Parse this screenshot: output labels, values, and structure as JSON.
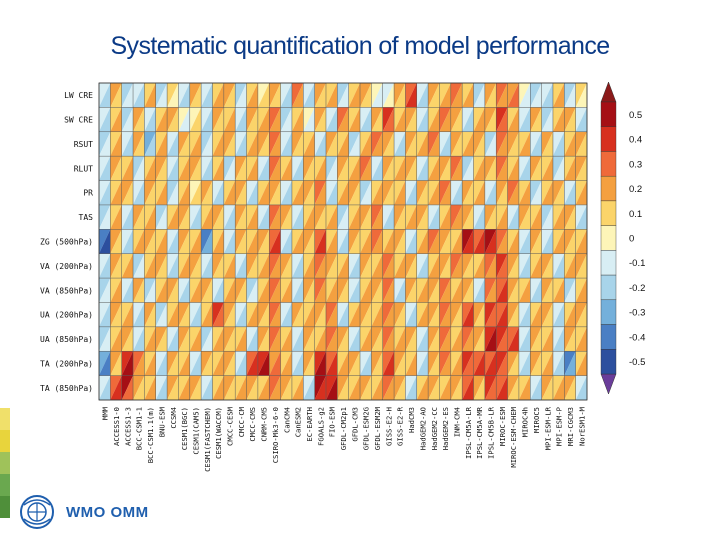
{
  "slide": {
    "title": "Systematic quantification of model performance",
    "logo_text": "WMO OMM"
  },
  "colors": {
    "title": "#0b3a86",
    "stripe": [
      "#f0e06a",
      "#e8d43c",
      "#9fc25a",
      "#6aa84f",
      "#4f8f3a"
    ],
    "logo": "#1f5fae"
  },
  "chart_data": {
    "type": "heatmap",
    "title": "",
    "row_labels": [
      "LW CRE",
      "SW CRE",
      "RSUT",
      "RLUT",
      "PR",
      "TAS",
      "ZG (500hPa)",
      "VA (200hPa)",
      "VA (850hPa)",
      "UA (200hPa)",
      "UA (850hPa)",
      "TA (200hPa)",
      "TA (850hPa)"
    ],
    "column_labels": [
      "MMM",
      "ACCESS1-0",
      "ACCESS1-3",
      "BCC-CSM1-1",
      "BCC-CSM1.1(m)",
      "BNU-ESM",
      "CCSM4",
      "CESM1(BGC)",
      "CESM1(CAM5)",
      "CESM1(FASTCHEM)",
      "CESM1(WACCM)",
      "CMCC-CESM",
      "CMCC-CM",
      "CMCC-CMS",
      "CNRM-CM5",
      "CSIRO-Mk3-6-0",
      "CanCM4",
      "CanESM2",
      "EC-EARTH",
      "FGOALS-g2",
      "FIO-ESM",
      "GFDL-CM2p1",
      "GFDL-CM3",
      "GFDL-ESM2G",
      "GFDL-ESM2M",
      "GISS-E2-H",
      "GISS-E2-R",
      "HadCM3",
      "HadGEM2-AO",
      "HadGEM2-CC",
      "HadGEM2-ES",
      "INM-CM4",
      "IPSL-CM5A-LR",
      "IPSL-CM5A-MR",
      "IPSL-CM5B-LR",
      "MIROC-ESM",
      "MIROC-ESM-CHEM",
      "MIROC4h",
      "MIROC5",
      "MPI-ESM-LR",
      "MPI-ESM-P",
      "MRI-CGCM3",
      "NorESM1-M"
    ],
    "colorbar": {
      "ticks": [
        0.5,
        0.4,
        0.3,
        0.2,
        0.1,
        0,
        -0.1,
        -0.2,
        -0.3,
        -0.4,
        -0.5
      ],
      "colors": [
        "#a50f15",
        "#d7301f",
        "#ef6a3a",
        "#f4a040",
        "#fbd46a",
        "#fdf5b8",
        "#d8eef4",
        "#a8d4ea",
        "#74b0db",
        "#4a7fc4",
        "#2c4f9e"
      ],
      "extend_top_color": "#8b1a1a",
      "extend_bottom_color": "#6a3d9a"
    },
    "values_upper": [
      [
        -0.1,
        0.2,
        -0.2,
        -0.1,
        0.1,
        -0.2,
        0.1,
        -0.1,
        0.2,
        -0.1,
        0.1,
        0.2,
        -0.2,
        0.1,
        0.0,
        0.2,
        -0.1,
        0.3,
        -0.1,
        0.2,
        0.1,
        -0.2,
        0.1,
        0.2,
        0.0,
        -0.1,
        0.2,
        0.3,
        -0.1,
        0.2,
        0.1,
        0.3,
        0.1,
        -0.2,
        0.2,
        0.3,
        0.2,
        0.0,
        -0.2,
        -0.1,
        0.1,
        -0.2,
        0.1
      ],
      [
        -0.1,
        0.1,
        -0.2,
        0.2,
        -0.1,
        0.1,
        0.2,
        0.0,
        0.0,
        -0.1,
        0.2,
        0.1,
        -0.1,
        0.2,
        0.1,
        0.3,
        -0.2,
        0.1,
        0.0,
        0.2,
        -0.1,
        0.3,
        0.1,
        -0.1,
        0.2,
        0.4,
        0.1,
        0.2,
        -0.1,
        0.1,
        0.3,
        0.2,
        -0.1,
        0.1,
        0.2,
        0.4,
        0.1,
        -0.1,
        0.2,
        -0.2,
        0.1,
        0.2,
        -0.1
      ],
      [
        -0.2,
        0.1,
        -0.1,
        0.2,
        -0.3,
        0.1,
        -0.1,
        0.2,
        0.1,
        -0.2,
        0.1,
        0.2,
        -0.1,
        0.1,
        0.2,
        0.3,
        -0.1,
        0.2,
        0.1,
        -0.1,
        0.2,
        0.1,
        -0.2,
        0.1,
        0.3,
        0.2,
        -0.1,
        0.2,
        0.1,
        0.3,
        -0.1,
        0.2,
        0.1,
        0.2,
        -0.2,
        0.3,
        0.2,
        0.1,
        -0.1,
        0.2,
        -0.1,
        0.1,
        0.2
      ],
      [
        -0.1,
        0.2,
        0.1,
        -0.2,
        0.1,
        0.2,
        -0.1,
        0.1,
        0.2,
        -0.1,
        0.1,
        -0.2,
        0.2,
        0.1,
        -0.1,
        0.3,
        0.1,
        -0.1,
        0.2,
        0.1,
        -0.2,
        0.2,
        0.1,
        0.3,
        -0.1,
        0.2,
        0.1,
        0.2,
        -0.1,
        0.1,
        0.2,
        0.3,
        -0.2,
        0.1,
        0.2,
        0.3,
        0.1,
        -0.1,
        0.2,
        0.1,
        -0.2,
        0.1,
        0.2
      ],
      [
        -0.1,
        0.1,
        0.2,
        -0.1,
        0.2,
        0.1,
        -0.2,
        0.1,
        0.0,
        0.2,
        -0.1,
        0.1,
        0.2,
        -0.1,
        0.1,
        0.2,
        -0.1,
        0.1,
        0.2,
        0.3,
        -0.1,
        0.1,
        0.2,
        -0.2,
        0.1,
        0.2,
        0.1,
        -0.1,
        0.2,
        0.1,
        0.3,
        -0.1,
        0.2,
        0.1,
        -0.1,
        0.2,
        0.3,
        0.1,
        -0.2,
        0.1,
        0.2,
        -0.1,
        0.1
      ],
      [
        -0.2,
        0.1,
        -0.1,
        0.2,
        0.1,
        -0.2,
        0.1,
        0.2,
        -0.1,
        0.1,
        0.2,
        -0.1,
        0.2,
        0.1,
        -0.1,
        0.3,
        0.2,
        -0.1,
        0.1,
        0.2,
        0.1,
        -0.2,
        0.1,
        0.2,
        0.3,
        -0.1,
        0.2,
        0.1,
        0.2,
        -0.1,
        0.1,
        0.3,
        0.2,
        -0.1,
        0.2,
        0.1,
        -0.1,
        0.2,
        0.1,
        -0.2,
        0.1,
        0.2,
        -0.1
      ],
      [
        -0.4,
        0.2,
        -0.1,
        0.1,
        0.2,
        0.1,
        -0.1,
        0.2,
        0.1,
        -0.4,
        0.1,
        -0.1,
        0.2,
        0.1,
        0.2,
        0.3,
        -0.1,
        0.1,
        0.2,
        0.3,
        0.1,
        -0.1,
        0.2,
        0.1,
        0.3,
        0.1,
        0.2,
        -0.1,
        0.1,
        0.3,
        0.2,
        0.1,
        0.5,
        0.3,
        0.5,
        0.3,
        0.1,
        -0.1,
        0.2,
        -0.1,
        0.1,
        0.2,
        0.1
      ],
      [
        -0.1,
        0.2,
        0.1,
        -0.2,
        0.1,
        0.2,
        -0.1,
        0.1,
        0.2,
        -0.1,
        0.2,
        0.1,
        -0.1,
        0.2,
        0.1,
        0.3,
        0.2,
        -0.1,
        0.1,
        0.3,
        0.2,
        0.1,
        -0.1,
        0.2,
        0.1,
        0.3,
        0.1,
        0.2,
        -0.1,
        0.1,
        0.2,
        0.3,
        0.2,
        0.1,
        0.3,
        0.4,
        0.2,
        -0.1,
        0.1,
        0.2,
        -0.1,
        0.1,
        0.2
      ],
      [
        -0.2,
        0.1,
        -0.1,
        0.2,
        -0.2,
        0.1,
        0.2,
        -0.1,
        0.1,
        0.2,
        -0.1,
        0.1,
        0.2,
        -0.2,
        0.1,
        0.3,
        0.1,
        -0.1,
        0.2,
        0.3,
        0.1,
        0.2,
        -0.1,
        0.1,
        0.2,
        0.3,
        -0.1,
        0.2,
        0.1,
        0.2,
        0.3,
        0.1,
        0.2,
        -0.1,
        0.3,
        0.3,
        0.2,
        0.1,
        -0.1,
        0.2,
        0.1,
        -0.2,
        0.1
      ],
      [
        -0.1,
        0.2,
        0.1,
        -0.1,
        0.2,
        -0.2,
        0.1,
        0.2,
        -0.1,
        0.1,
        0.4,
        0.2,
        -0.1,
        0.1,
        0.2,
        0.3,
        -0.1,
        0.2,
        0.1,
        0.2,
        0.3,
        -0.1,
        0.1,
        0.2,
        0.1,
        0.3,
        0.2,
        -0.1,
        0.1,
        0.2,
        0.3,
        0.2,
        0.3,
        0.2,
        0.4,
        0.3,
        0.2,
        -0.1,
        0.1,
        0.2,
        -0.1,
        0.1,
        0.2
      ],
      [
        -0.2,
        0.1,
        0.2,
        -0.1,
        0.1,
        0.2,
        -0.1,
        0.2,
        0.1,
        -0.2,
        0.1,
        0.2,
        0.1,
        -0.1,
        0.2,
        0.3,
        0.1,
        -0.1,
        0.2,
        0.1,
        0.3,
        0.2,
        -0.1,
        0.1,
        0.2,
        0.3,
        0.1,
        0.2,
        -0.1,
        0.2,
        0.3,
        0.1,
        0.3,
        0.2,
        0.4,
        0.4,
        0.3,
        -0.1,
        0.2,
        0.1,
        -0.1,
        0.2,
        0.1
      ],
      [
        -0.3,
        0.2,
        0.4,
        0.3,
        0.1,
        -0.1,
        0.2,
        0.1,
        -0.1,
        0.2,
        0.1,
        0.2,
        -0.1,
        0.3,
        0.4,
        0.2,
        0.1,
        -0.1,
        0.2,
        0.4,
        0.3,
        0.1,
        0.2,
        -0.1,
        0.2,
        0.3,
        0.2,
        0.1,
        -0.1,
        0.2,
        0.3,
        0.1,
        0.4,
        0.3,
        0.3,
        0.4,
        0.2,
        -0.1,
        0.2,
        0.1,
        -0.1,
        -0.4,
        0.1
      ],
      [
        -0.1,
        0.3,
        0.5,
        0.2,
        0.1,
        -0.1,
        0.2,
        0.1,
        0.2,
        -0.1,
        0.1,
        0.2,
        0.1,
        0.2,
        0.1,
        0.3,
        0.2,
        0.1,
        -0.1,
        0.5,
        0.4,
        0.2,
        0.1,
        0.2,
        0.1,
        0.3,
        0.2,
        -0.1,
        0.1,
        0.2,
        0.1,
        0.2,
        0.3,
        0.2,
        0.4,
        0.3,
        0.2,
        0.1,
        -0.1,
        0.2,
        0.1,
        0.2,
        -0.1
      ]
    ],
    "values_lower": [
      [
        -0.2,
        0.1,
        -0.1,
        -0.2,
        0.2,
        -0.1,
        0.0,
        -0.2,
        0.1,
        -0.2,
        0.2,
        0.1,
        -0.1,
        0.2,
        0.1,
        0.1,
        -0.2,
        0.2,
        -0.2,
        0.1,
        0.2,
        -0.1,
        0.2,
        0.1,
        -0.1,
        0.0,
        0.1,
        0.4,
        -0.2,
        0.1,
        0.2,
        0.2,
        0.2,
        -0.1,
        0.1,
        0.2,
        0.3,
        -0.1,
        -0.1,
        -0.2,
        0.2,
        -0.1,
        0.0
      ],
      [
        -0.2,
        0.2,
        -0.1,
        0.1,
        -0.2,
        0.2,
        0.1,
        -0.1,
        0.1,
        -0.2,
        0.1,
        0.2,
        -0.2,
        0.1,
        0.2,
        0.2,
        -0.1,
        0.2,
        -0.1,
        0.1,
        -0.2,
        0.2,
        0.2,
        -0.2,
        0.1,
        0.3,
        0.2,
        0.1,
        -0.2,
        0.2,
        0.2,
        0.1,
        -0.2,
        0.2,
        0.1,
        0.3,
        0.2,
        -0.2,
        0.1,
        -0.1,
        0.2,
        0.1,
        -0.2
      ],
      [
        -0.1,
        0.2,
        -0.2,
        0.1,
        -0.2,
        0.2,
        -0.2,
        0.1,
        0.2,
        -0.1,
        0.2,
        0.1,
        -0.2,
        0.2,
        0.1,
        0.2,
        -0.2,
        0.1,
        0.2,
        -0.2,
        0.1,
        0.2,
        -0.1,
        0.2,
        0.2,
        0.1,
        -0.2,
        0.1,
        0.2,
        0.2,
        -0.2,
        0.1,
        0.2,
        0.1,
        -0.1,
        0.2,
        0.1,
        0.2,
        -0.2,
        0.1,
        -0.2,
        0.2,
        0.1
      ],
      [
        -0.2,
        0.1,
        0.2,
        -0.1,
        0.2,
        0.1,
        -0.2,
        0.2,
        0.1,
        -0.2,
        0.2,
        -0.1,
        0.1,
        0.2,
        -0.2,
        0.2,
        0.2,
        -0.2,
        0.1,
        0.2,
        -0.1,
        0.1,
        0.2,
        0.2,
        -0.2,
        0.1,
        0.2,
        0.1,
        -0.2,
        0.2,
        0.1,
        0.2,
        -0.1,
        0.2,
        0.1,
        0.2,
        0.2,
        -0.2,
        0.1,
        0.2,
        -0.1,
        0.2,
        0.1
      ],
      [
        -0.2,
        0.2,
        0.1,
        -0.2,
        0.1,
        0.2,
        -0.1,
        0.2,
        0.1,
        0.1,
        -0.2,
        0.2,
        0.1,
        -0.2,
        0.2,
        0.1,
        -0.2,
        0.2,
        0.1,
        0.2,
        -0.2,
        0.2,
        0.1,
        -0.1,
        0.2,
        0.1,
        0.2,
        -0.2,
        0.1,
        0.2,
        0.2,
        -0.2,
        0.1,
        0.2,
        -0.2,
        0.1,
        0.2,
        0.2,
        -0.1,
        0.2,
        0.1,
        -0.2,
        0.2
      ],
      [
        -0.1,
        0.2,
        -0.2,
        0.1,
        0.2,
        -0.1,
        0.2,
        0.1,
        -0.2,
        0.2,
        0.1,
        -0.2,
        0.1,
        0.2,
        -0.2,
        0.2,
        0.1,
        -0.2,
        0.2,
        0.1,
        0.2,
        -0.1,
        0.2,
        0.1,
        0.2,
        -0.2,
        0.1,
        0.2,
        0.1,
        -0.2,
        0.2,
        0.2,
        0.1,
        -0.2,
        0.1,
        0.2,
        -0.2,
        0.1,
        0.2,
        -0.1,
        0.2,
        0.1,
        -0.2
      ],
      [
        -0.5,
        0.1,
        -0.2,
        0.2,
        0.1,
        0.2,
        -0.2,
        0.1,
        0.2,
        -0.3,
        0.2,
        -0.2,
        0.1,
        0.2,
        0.1,
        0.4,
        -0.2,
        0.2,
        0.1,
        0.4,
        0.2,
        -0.2,
        0.1,
        0.2,
        0.2,
        0.2,
        0.1,
        -0.2,
        0.2,
        0.2,
        0.1,
        0.2,
        0.4,
        0.4,
        0.4,
        0.2,
        0.2,
        -0.2,
        0.1,
        -0.2,
        0.2,
        0.1,
        0.2
      ],
      [
        -0.2,
        0.1,
        0.2,
        -0.1,
        0.2,
        0.1,
        -0.2,
        0.2,
        0.1,
        -0.2,
        0.1,
        0.2,
        -0.2,
        0.1,
        0.2,
        0.2,
        0.1,
        -0.2,
        0.2,
        0.2,
        0.1,
        0.2,
        -0.2,
        0.1,
        0.2,
        0.2,
        0.2,
        0.1,
        -0.2,
        0.2,
        0.1,
        0.2,
        0.1,
        0.2,
        0.2,
        0.3,
        0.1,
        -0.2,
        0.2,
        0.1,
        -0.2,
        0.2,
        0.1
      ],
      [
        -0.1,
        0.2,
        -0.2,
        0.1,
        -0.1,
        0.2,
        0.1,
        -0.2,
        0.2,
        0.1,
        -0.2,
        0.2,
        0.1,
        -0.1,
        0.2,
        0.2,
        0.2,
        -0.2,
        0.1,
        0.2,
        0.2,
        0.1,
        -0.2,
        0.2,
        0.1,
        0.2,
        -0.2,
        0.1,
        0.2,
        0.1,
        0.2,
        0.2,
        0.1,
        -0.2,
        0.2,
        0.4,
        0.1,
        0.2,
        -0.2,
        0.1,
        0.2,
        -0.1,
        0.2
      ],
      [
        -0.2,
        0.1,
        0.2,
        -0.2,
        0.1,
        -0.1,
        0.2,
        0.1,
        -0.2,
        0.2,
        0.3,
        0.1,
        -0.2,
        0.2,
        0.1,
        0.2,
        -0.2,
        0.1,
        0.2,
        0.1,
        0.2,
        -0.2,
        0.2,
        0.1,
        0.2,
        0.2,
        0.1,
        -0.2,
        0.2,
        0.1,
        0.2,
        0.1,
        0.4,
        0.1,
        0.3,
        0.4,
        0.1,
        -0.2,
        0.2,
        0.1,
        -0.2,
        0.2,
        0.1
      ],
      [
        -0.1,
        0.2,
        0.1,
        -0.2,
        0.2,
        0.1,
        -0.2,
        0.1,
        0.2,
        -0.1,
        0.2,
        0.1,
        0.2,
        -0.2,
        0.1,
        0.2,
        0.2,
        -0.2,
        0.1,
        0.2,
        0.2,
        0.1,
        -0.2,
        0.2,
        0.1,
        0.2,
        0.2,
        0.1,
        -0.2,
        0.1,
        0.2,
        0.2,
        0.2,
        0.1,
        0.5,
        0.3,
        0.4,
        -0.2,
        0.1,
        0.2,
        -0.2,
        0.1,
        0.2
      ],
      [
        -0.4,
        0.1,
        0.5,
        0.2,
        0.2,
        -0.2,
        0.1,
        0.2,
        -0.2,
        0.1,
        0.2,
        0.1,
        -0.2,
        0.4,
        0.5,
        0.3,
        0.2,
        -0.2,
        0.1,
        0.5,
        0.4,
        0.2,
        0.1,
        -0.2,
        0.1,
        0.4,
        0.1,
        0.2,
        -0.2,
        0.1,
        0.2,
        0.2,
        0.3,
        0.4,
        0.4,
        0.3,
        0.1,
        -0.2,
        0.1,
        0.2,
        -0.2,
        -0.3,
        0.2
      ],
      [
        -0.2,
        0.4,
        0.3,
        0.1,
        0.2,
        -0.2,
        0.1,
        0.2,
        0.1,
        -0.2,
        0.2,
        0.1,
        0.2,
        0.1,
        0.2,
        0.2,
        0.1,
        0.2,
        -0.2,
        0.4,
        0.5,
        0.1,
        0.2,
        0.1,
        0.2,
        0.2,
        0.1,
        -0.2,
        0.2,
        0.1,
        0.2,
        0.1,
        0.4,
        0.1,
        0.3,
        0.4,
        0.1,
        0.2,
        -0.2,
        0.1,
        0.2,
        0.1,
        -0.2
      ]
    ],
    "xlabel": "",
    "ylabel": "",
    "grid": true,
    "legend": "right"
  }
}
